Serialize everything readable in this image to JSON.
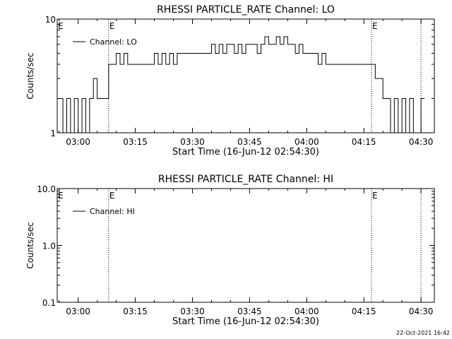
{
  "footer": {
    "timestamp": "22-Oct-2021 16:42"
  },
  "chart_data": [
    {
      "type": "line",
      "title": "RHESSI PARTICLE_RATE Channel: LO",
      "xlabel": "Start Time (16-Jun-12 02:54:30)",
      "ylabel": "Counts/sec",
      "y_scale": "log",
      "ylim": [
        1,
        10
      ],
      "y_ticks": [
        "1",
        "10"
      ],
      "xlim": [
        "02:54:30",
        "04:33:30"
      ],
      "x_ticks": [
        "03:00",
        "03:15",
        "03:30",
        "03:45",
        "04:00",
        "04:15",
        "04:30"
      ],
      "grid": false,
      "legend": {
        "position": "top-left",
        "entries": [
          "Channel: LO"
        ]
      },
      "event_markers": [
        {
          "time": "03:08",
          "label": "E"
        },
        {
          "time": "04:17",
          "label": "E"
        },
        {
          "time": "04:30",
          "label": ""
        }
      ],
      "series": [
        {
          "name": "Channel: LO",
          "x": [
            "02:55",
            "02:56",
            "02:57",
            "02:58",
            "02:59",
            "03:00",
            "03:01",
            "03:02",
            "03:03",
            "03:04",
            "03:05",
            "03:06",
            "03:07",
            "03:08",
            "03:09",
            "03:10",
            "03:11",
            "03:12",
            "03:13",
            "03:14",
            "03:15",
            "03:16",
            "03:17",
            "03:18",
            "03:19",
            "03:20",
            "03:21",
            "03:22",
            "03:23",
            "03:24",
            "03:25",
            "03:26",
            "03:27",
            "03:28",
            "03:29",
            "03:30",
            "03:31",
            "03:32",
            "03:33",
            "03:34",
            "03:35",
            "03:36",
            "03:37",
            "03:38",
            "03:39",
            "03:40",
            "03:41",
            "03:42",
            "03:43",
            "03:44",
            "03:45",
            "03:46",
            "03:47",
            "03:48",
            "03:49",
            "03:50",
            "03:51",
            "03:52",
            "03:53",
            "03:54",
            "03:55",
            "03:56",
            "03:57",
            "03:58",
            "03:59",
            "04:00",
            "04:01",
            "04:02",
            "04:03",
            "04:04",
            "04:05",
            "04:06",
            "04:07",
            "04:08",
            "04:09",
            "04:10",
            "04:11",
            "04:12",
            "04:13",
            "04:14",
            "04:15",
            "04:16",
            "04:17",
            "04:18",
            "04:19",
            "04:20",
            "04:21",
            "04:22",
            "04:23",
            "04:24",
            "04:25",
            "04:26",
            "04:27",
            "04:28",
            "04:29",
            "04:30"
          ],
          "values": [
            2,
            1,
            2,
            1,
            2,
            1,
            2,
            1,
            2,
            3,
            2,
            2,
            2,
            4,
            4,
            5,
            4,
            5,
            4,
            4,
            4,
            4,
            4,
            4,
            4,
            5,
            4,
            5,
            4,
            5,
            4,
            5,
            5,
            5,
            5,
            5,
            5,
            5,
            5,
            5,
            6,
            5,
            6,
            5,
            6,
            6,
            5,
            6,
            5,
            6,
            6,
            6,
            5,
            6,
            7,
            6,
            6,
            7,
            6,
            7,
            6,
            6,
            5,
            6,
            5,
            5,
            5,
            5,
            4,
            5,
            4,
            4,
            4,
            4,
            4,
            4,
            4,
            4,
            4,
            4,
            4,
            4,
            4,
            3,
            3,
            2,
            2,
            1,
            2,
            1,
            2,
            1,
            2,
            1,
            1,
            2
          ]
        }
      ]
    },
    {
      "type": "line",
      "title": "RHESSI PARTICLE_RATE Channel: HI",
      "xlabel": "Start Time (16-Jun-12 02:54:30)",
      "ylabel": "Counts/sec",
      "y_scale": "log",
      "ylim": [
        0.1,
        10
      ],
      "y_ticks": [
        "0.1",
        "1.0",
        "10.0"
      ],
      "xlim": [
        "02:54:30",
        "04:33:30"
      ],
      "x_ticks": [
        "03:00",
        "03:15",
        "03:30",
        "03:45",
        "04:00",
        "04:15",
        "04:30"
      ],
      "grid": false,
      "legend": {
        "position": "top-left",
        "entries": [
          "Channel: HI"
        ]
      },
      "event_markers": [
        {
          "time": "03:08",
          "label": "E"
        },
        {
          "time": "04:17",
          "label": "E"
        },
        {
          "time": "04:30",
          "label": ""
        }
      ],
      "series": [
        {
          "name": "Channel: HI",
          "x": [],
          "values": []
        }
      ]
    }
  ]
}
